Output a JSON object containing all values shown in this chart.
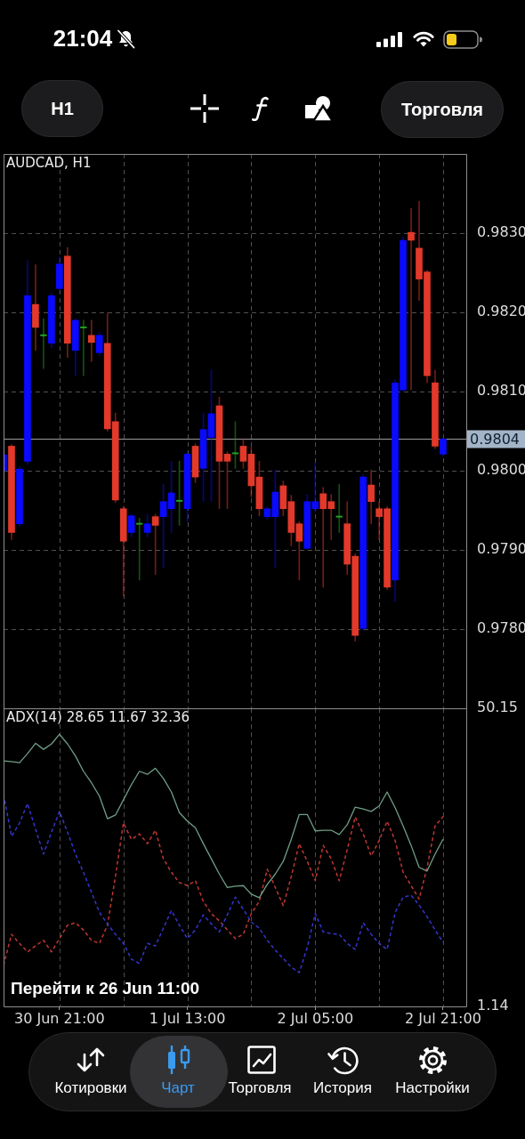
{
  "chart_data": [
    {
      "type": "candlestick",
      "title": "AUDCAD, H1",
      "x": [
        "--06-30T14:00",
        "--06-30T15:00",
        "--06-30T16:00",
        "--06-30T17:00",
        "--06-30T18:00",
        "--06-30T19:00",
        "--06-30T20:00",
        "--06-30T21:00",
        "--06-30T22:00",
        "--06-30T23:00",
        "--07-01T00:00",
        "--07-01T01:00",
        "--07-01T02:00",
        "--07-01T03:00",
        "--07-01T04:00",
        "--07-01T05:00",
        "--07-01T06:00",
        "--07-01T07:00",
        "--07-01T08:00",
        "--07-01T09:00",
        "--07-01T10:00",
        "--07-01T11:00",
        "--07-01T12:00",
        "--07-01T13:00",
        "--07-01T14:00",
        "--07-01T15:00",
        "--07-01T16:00",
        "--07-01T17:00",
        "--07-01T18:00",
        "--07-01T19:00",
        "--07-01T20:00",
        "--07-01T21:00",
        "--07-01T22:00",
        "--07-01T23:00",
        "--07-02T00:00",
        "--07-02T01:00",
        "--07-02T02:00",
        "--07-02T03:00",
        "--07-02T04:00",
        "--07-02T05:00",
        "--07-02T06:00",
        "--07-02T07:00",
        "--07-02T08:00",
        "--07-02T09:00",
        "--07-02T10:00",
        "--07-02T11:00",
        "--07-02T12:00",
        "--07-02T13:00",
        "--07-02T14:00",
        "--07-02T15:00",
        "--07-02T16:00",
        "--07-02T17:00",
        "--07-02T18:00",
        "--07-02T19:00",
        "--07-02T20:00",
        "--07-02T21:00"
      ],
      "ohlc": [
        [
          0.98,
          0.98022,
          0.97998,
          0.9802
        ],
        [
          0.98031,
          0.98033,
          0.97913,
          0.97922
        ],
        [
          0.97933,
          0.98005,
          0.9793,
          0.98002
        ],
        [
          0.98012,
          0.98265,
          0.98008,
          0.98221
        ],
        [
          0.9821,
          0.9826,
          0.98152,
          0.98181
        ],
        [
          0.98171,
          0.98192,
          0.98129,
          0.98171
        ],
        [
          0.98161,
          0.98225,
          0.98155,
          0.98221
        ],
        [
          0.9823,
          0.9827,
          0.98228,
          0.98261
        ],
        [
          0.98271,
          0.98282,
          0.98143,
          0.98161
        ],
        [
          0.98152,
          0.98192,
          0.9812,
          0.9819
        ],
        [
          0.98181,
          0.9819,
          0.9812,
          0.98181
        ],
        [
          0.98171,
          0.9819,
          0.98138,
          0.98162
        ],
        [
          0.98149,
          0.98175,
          0.98145,
          0.98171
        ],
        [
          0.98161,
          0.98199,
          0.9805,
          0.98053
        ],
        [
          0.98062,
          0.98073,
          0.9796,
          0.97963
        ],
        [
          0.97952,
          0.97955,
          0.97842,
          0.97911
        ],
        [
          0.97922,
          0.97945,
          0.97916,
          0.97943
        ],
        [
          0.97933,
          0.9794,
          0.97862,
          0.97933
        ],
        [
          0.97922,
          0.97945,
          0.97916,
          0.97933
        ],
        [
          0.97942,
          0.97945,
          0.97869,
          0.97931
        ],
        [
          0.97942,
          0.97983,
          0.97878,
          0.97961
        ],
        [
          0.97952,
          0.98012,
          0.97922,
          0.97972
        ],
        [
          0.97962,
          0.98012,
          0.97931,
          0.97962
        ],
        [
          0.97952,
          0.98024,
          0.97936,
          0.98021
        ],
        [
          0.98031,
          0.98034,
          0.97985,
          0.97992
        ],
        [
          0.98003,
          0.98073,
          0.97961,
          0.98052
        ],
        [
          0.98042,
          0.98127,
          0.97961,
          0.98072
        ],
        [
          0.98082,
          0.98093,
          0.97952,
          0.98012
        ],
        [
          0.98021,
          0.98024,
          0.97952,
          0.98012
        ],
        [
          0.98022,
          0.98062,
          0.98003,
          0.98022
        ],
        [
          0.98031,
          0.9804,
          0.98003,
          0.98012
        ],
        [
          0.98021,
          0.9803,
          0.97967,
          0.97981
        ],
        [
          0.97992,
          0.98012,
          0.97943,
          0.97952
        ],
        [
          0.97942,
          0.97955,
          0.97938,
          0.97952
        ],
        [
          0.97942,
          0.98001,
          0.97878,
          0.97973
        ],
        [
          0.97981,
          0.97987,
          0.97943,
          0.97952
        ],
        [
          0.97961,
          0.97969,
          0.97905,
          0.97922
        ],
        [
          0.97933,
          0.97936,
          0.97862,
          0.97911
        ],
        [
          0.97902,
          0.9797,
          0.979,
          0.97961
        ],
        [
          0.97952,
          0.9801,
          0.97948,
          0.97961
        ],
        [
          0.97971,
          0.97979,
          0.97853,
          0.97952
        ],
        [
          0.97961,
          0.9797,
          0.97913,
          0.97952
        ],
        [
          0.97942,
          0.97983,
          0.97922,
          0.97942
        ],
        [
          0.97933,
          0.97961,
          0.97869,
          0.97882
        ],
        [
          0.97892,
          0.97895,
          0.97785,
          0.97792
        ],
        [
          0.97801,
          0.97995,
          0.97798,
          0.97992
        ],
        [
          0.97982,
          0.98001,
          0.97933,
          0.97961
        ],
        [
          0.97952,
          0.97961,
          0.97913,
          0.97942
        ],
        [
          0.97952,
          0.97955,
          0.9785,
          0.97853
        ],
        [
          0.97862,
          0.98115,
          0.97835,
          0.98111
        ],
        [
          0.98102,
          0.98295,
          0.981,
          0.98291
        ],
        [
          0.98301,
          0.98331,
          0.98102,
          0.98291
        ],
        [
          0.98281,
          0.9834,
          0.98215,
          0.98242
        ],
        [
          0.98251,
          0.98253,
          0.98111,
          0.9812
        ],
        [
          0.98111,
          0.98127,
          0.98028,
          0.98031
        ],
        [
          0.98021,
          0.98042,
          0.98018,
          0.9804
        ]
      ],
      "colors": [
        "#0a0aff",
        "#e2392a",
        "#0a0aff",
        "#0a0aff",
        "#e2392a",
        "#23a123",
        "#0a0aff",
        "#0a0aff",
        "#e2392a",
        "#0a0aff",
        "#23a123",
        "#e2392a",
        "#0a0aff",
        "#e2392a",
        "#e2392a",
        "#e2392a",
        "#0a0aff",
        "#23a123",
        "#0a0aff",
        "#e2392a",
        "#0a0aff",
        "#0a0aff",
        "#23a123",
        "#0a0aff",
        "#e2392a",
        "#0a0aff",
        "#0a0aff",
        "#e2392a",
        "#e2392a",
        "#23a123",
        "#e2392a",
        "#e2392a",
        "#e2392a",
        "#0a0aff",
        "#0a0aff",
        "#e2392a",
        "#e2392a",
        "#e2392a",
        "#0a0aff",
        "#0a0aff",
        "#e2392a",
        "#e2392a",
        "#23a123",
        "#e2392a",
        "#e2392a",
        "#0a0aff",
        "#e2392a",
        "#e2392a",
        "#e2392a",
        "#0a0aff",
        "#0a0aff",
        "#e2392a",
        "#e2392a",
        "#e2392a",
        "#e2392a",
        "#0a0aff"
      ],
      "xlim": [
        "--06-30T14:00",
        "--07-02T23:54"
      ],
      "xticks": [
        {
          "value": "--06-30T21:00",
          "label": null
        },
        {
          "value": "--07-01T05:00",
          "label": null
        },
        {
          "value": "--07-01T13:00",
          "label": null
        },
        {
          "value": "--07-01T21:00",
          "label": null
        },
        {
          "value": "--07-02T05:00",
          "label": null
        },
        {
          "value": "--07-02T13:00",
          "label": null
        },
        {
          "value": "--07-02T21:00",
          "label": null
        }
      ],
      "ylim": [
        0.977,
        0.984
      ],
      "yticks": [
        {
          "value": 0.978,
          "label": "0.9780"
        },
        {
          "value": 0.979,
          "label": "0.9790"
        },
        {
          "value": 0.98,
          "label": "0.9800"
        },
        {
          "value": 0.981,
          "label": "0.9810"
        },
        {
          "value": 0.982,
          "label": "0.9820"
        },
        {
          "value": 0.983,
          "label": "0.9830"
        }
      ],
      "grid": true,
      "tick_labels": "y",
      "ref_lines": [
        {
          "axis": "y",
          "value": 0.9804,
          "label": "0.9804",
          "color": "#9a9a9a"
        }
      ],
      "annotations": [
        "21:04",
        "H1",
        "Торговля"
      ]
    },
    {
      "type": "line",
      "title": "ADX(14) 28.65 11.67 32.36",
      "x": [
        "--06-30T14:00",
        "--06-30T15:00",
        "--06-30T16:00",
        "--06-30T17:00",
        "--06-30T18:00",
        "--06-30T19:00",
        "--06-30T20:00",
        "--06-30T21:00",
        "--06-30T22:00",
        "--06-30T23:00",
        "--07-01T00:00",
        "--07-01T01:00",
        "--07-01T02:00",
        "--07-01T03:00",
        "--07-01T04:00",
        "--07-01T05:00",
        "--07-01T06:00",
        "--07-01T07:00",
        "--07-01T08:00",
        "--07-01T09:00",
        "--07-01T10:00",
        "--07-01T11:00",
        "--07-01T12:00",
        "--07-01T13:00",
        "--07-01T14:00",
        "--07-01T15:00",
        "--07-01T16:00",
        "--07-01T17:00",
        "--07-01T18:00",
        "--07-01T19:00",
        "--07-01T20:00",
        "--07-01T21:00",
        "--07-01T22:00",
        "--07-01T23:00",
        "--07-02T00:00",
        "--07-02T01:00",
        "--07-02T02:00",
        "--07-02T03:00",
        "--07-02T04:00",
        "--07-02T05:00",
        "--07-02T06:00",
        "--07-02T07:00",
        "--07-02T08:00",
        "--07-02T09:00",
        "--07-02T10:00",
        "--07-02T11:00",
        "--07-02T12:00",
        "--07-02T13:00",
        "--07-02T14:00",
        "--07-02T15:00",
        "--07-02T16:00",
        "--07-02T17:00",
        "--07-02T18:00",
        "--07-02T19:00",
        "--07-02T20:00",
        "--07-02T21:00"
      ],
      "series": [
        {
          "color": "#6f9f86",
          "line_style": "solid",
          "values": [
            41.5,
            41.4,
            41.2,
            42.7,
            44.4,
            43.4,
            44.3,
            45.9,
            44.3,
            42.3,
            39.8,
            37.9,
            35.7,
            32.0,
            32.6,
            35.1,
            37.6,
            39.8,
            39.3,
            40.3,
            38.6,
            36.4,
            33.0,
            31.6,
            30.5,
            27.9,
            25.4,
            22.9,
            20.7,
            20.9,
            21.0,
            19.6,
            19.0,
            21.2,
            22.9,
            25.0,
            28.6,
            32.7,
            32.7,
            30.0,
            30.1,
            30.1,
            29.4,
            31.0,
            33.9,
            33.6,
            33.2,
            34.1,
            36.4,
            33.8,
            30.8,
            27.6,
            24.0,
            23.4,
            26.2,
            28.65
          ]
        },
        {
          "color": "#3535cc",
          "line_style": "dashed",
          "values": [
            36.0,
            29.1,
            31.3,
            34.5,
            30.3,
            26.2,
            29.8,
            33.2,
            29.8,
            26.2,
            23.2,
            19.9,
            16.6,
            14.7,
            13.0,
            11.5,
            8.9,
            8.2,
            11.5,
            11.1,
            14.0,
            16.9,
            14.5,
            12.3,
            13.7,
            16.2,
            14.7,
            13.4,
            16.2,
            19.1,
            17.1,
            15.0,
            14.0,
            12.0,
            10.4,
            9.0,
            7.6,
            6.7,
            10.8,
            16.4,
            13.4,
            13.1,
            13.0,
            11.5,
            10.5,
            14.9,
            13.0,
            11.5,
            10.5,
            16.6,
            19.1,
            19.4,
            17.8,
            15.9,
            13.7,
            11.67
          ]
        },
        {
          "color": "#bd3630",
          "line_style": "dashed",
          "values": [
            7.9,
            13.0,
            11.5,
            10.1,
            11.1,
            12.0,
            10.1,
            12.3,
            14.5,
            14.9,
            13.7,
            12.0,
            11.5,
            14.5,
            22.5,
            31.3,
            28.6,
            29.5,
            27.9,
            30.1,
            25.4,
            23.2,
            21.5,
            21.0,
            21.8,
            18.4,
            16.4,
            15.2,
            13.7,
            12.3,
            13.0,
            16.4,
            18.4,
            23.7,
            20.7,
            17.7,
            22.5,
            27.9,
            25.0,
            21.8,
            27.6,
            25.4,
            21.8,
            26.9,
            32.3,
            29.5,
            25.9,
            28.4,
            31.6,
            28.4,
            23.2,
            21.0,
            18.8,
            24.0,
            30.8,
            32.36
          ]
        }
      ],
      "xlim": [
        "--06-30T14:00",
        "--07-02T23:54"
      ],
      "xticks": [
        {
          "value": "--06-30T21:00",
          "label": "30 Jun 21:00"
        },
        {
          "value": "--07-01T05:00",
          "label": null
        },
        {
          "value": "--07-01T13:00",
          "label": "1 Jul 13:00"
        },
        {
          "value": "--07-01T21:00",
          "label": null
        },
        {
          "value": "--07-02T05:00",
          "label": "2 Jul 05:00"
        },
        {
          "value": "--07-02T13:00",
          "label": null
        },
        {
          "value": "--07-02T21:00",
          "label": "2 Jul 21:00"
        }
      ],
      "ylim": [
        1.14,
        50.15
      ],
      "yticks": [
        1.14,
        50.15
      ],
      "grid": "x",
      "annotations": [
        "Перейти к 26 Jun 11:00",
        "Котировки",
        "Чарт",
        "Торговля",
        "История",
        "Настройки"
      ]
    }
  ]
}
